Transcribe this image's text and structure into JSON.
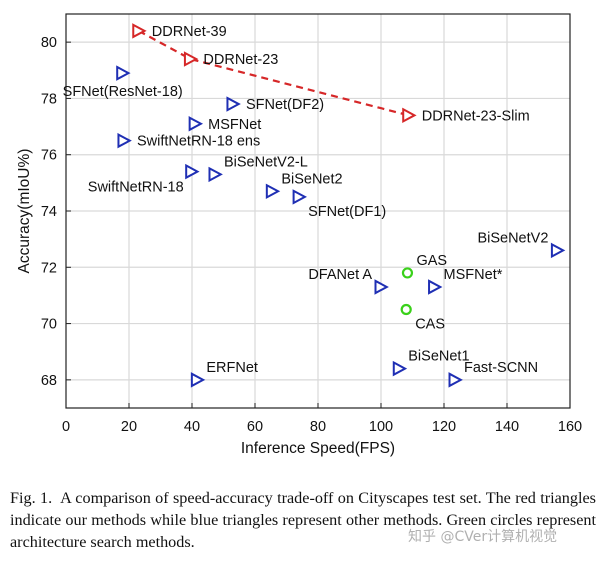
{
  "chart_data": {
    "type": "scatter",
    "title": "",
    "xlabel": "Inference Speed(FPS)",
    "ylabel": "Accuracy(mIoU%)",
    "xlim": [
      0,
      160
    ],
    "ylim": [
      67,
      81
    ],
    "xticks": [
      0,
      20,
      40,
      60,
      80,
      100,
      120,
      140,
      160
    ],
    "yticks": [
      68,
      70,
      72,
      74,
      76,
      78,
      80
    ],
    "grid": true,
    "groups": {
      "ours": {
        "marker": "triangle-right",
        "color": "#d62728"
      },
      "other": {
        "marker": "triangle-right",
        "color": "#1f2fb4"
      },
      "search": {
        "marker": "circle",
        "color": "#3ad11a"
      }
    },
    "points": [
      {
        "name": "DDRNet-39",
        "x": 23.1,
        "y": 80.4,
        "group": "ours",
        "label_pos": "right"
      },
      {
        "name": "DDRNet-23",
        "x": 39.5,
        "y": 79.4,
        "group": "ours",
        "label_pos": "right"
      },
      {
        "name": "DDRNet-23-Slim",
        "x": 108.8,
        "y": 77.4,
        "group": "ours",
        "label_pos": "right"
      },
      {
        "name": "SFNet(ResNet-18)",
        "x": 18.0,
        "y": 78.9,
        "group": "other",
        "label_pos": "below"
      },
      {
        "name": "SFNet(DF2)",
        "x": 53.0,
        "y": 77.8,
        "group": "other",
        "label_pos": "right"
      },
      {
        "name": "MSFNet",
        "x": 41.0,
        "y": 77.1,
        "group": "other",
        "label_pos": "right"
      },
      {
        "name": "SwiftNetRN-18 ens",
        "x": 18.4,
        "y": 76.5,
        "group": "other",
        "label_pos": "right"
      },
      {
        "name": "BiSeNetV2-L",
        "x": 47.3,
        "y": 75.3,
        "group": "other",
        "label_pos": "above-right"
      },
      {
        "name": "SwiftNetRN-18",
        "x": 39.9,
        "y": 75.4,
        "group": "other",
        "label_pos": "below-left"
      },
      {
        "name": "BiSeNet2",
        "x": 65.5,
        "y": 74.7,
        "group": "other",
        "label_pos": "above-right"
      },
      {
        "name": "SFNet(DF1)",
        "x": 74.0,
        "y": 74.5,
        "group": "other",
        "label_pos": "below-right"
      },
      {
        "name": "BiSeNetV2",
        "x": 156.0,
        "y": 72.6,
        "group": "other",
        "label_pos": "above-left"
      },
      {
        "name": "DFANet A",
        "x": 100.0,
        "y": 71.3,
        "group": "other",
        "label_pos": "above-left"
      },
      {
        "name": "MSFNet*",
        "x": 117.0,
        "y": 71.3,
        "group": "other",
        "label_pos": "above-right"
      },
      {
        "name": "BiSeNet1",
        "x": 105.8,
        "y": 68.4,
        "group": "other",
        "label_pos": "above-right"
      },
      {
        "name": "Fast-SCNN",
        "x": 123.5,
        "y": 68.0,
        "group": "other",
        "label_pos": "above-right"
      },
      {
        "name": "ERFNet",
        "x": 41.7,
        "y": 68.0,
        "group": "other",
        "label_pos": "above-right"
      },
      {
        "name": "GAS",
        "x": 108.4,
        "y": 71.8,
        "group": "search",
        "label_pos": "above-right"
      },
      {
        "name": "CAS",
        "x": 108.0,
        "y": 70.5,
        "group": "search",
        "label_pos": "below-right"
      }
    ],
    "trend_line": {
      "group": "ours",
      "style": "dashed",
      "color": "#d62728",
      "points": [
        "DDRNet-39",
        "DDRNet-23",
        "DDRNet-23-Slim"
      ]
    }
  },
  "caption": {
    "figure_label": "Fig. 1.",
    "text": "A comparison of speed-accuracy trade-off on Cityscapes test set. The red triangles indicate our methods while blue triangles represent other methods. Green circles represent architecture search methods."
  },
  "watermark": "知乎 @CVer计算机视觉"
}
